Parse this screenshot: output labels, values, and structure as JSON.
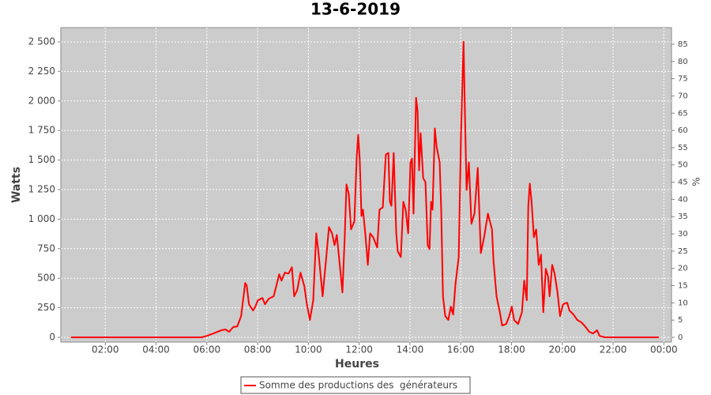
{
  "chart_data": {
    "type": "line",
    "title": "13-6-2019",
    "x_label": "Heures",
    "y_label": "Watts",
    "y2_label": "%",
    "x": [
      0.65,
      5.8,
      6.01,
      6.26,
      6.57,
      6.73,
      6.88,
      7.04,
      7.2,
      7.35,
      7.51,
      7.57,
      7.66,
      7.82,
      7.91,
      8.01,
      8.19,
      8.29,
      8.44,
      8.63,
      8.75,
      8.85,
      8.94,
      9.07,
      9.22,
      9.35,
      9.44,
      9.56,
      9.69,
      9.84,
      9.94,
      10.06,
      10.19,
      10.31,
      10.4,
      10.56,
      10.69,
      10.81,
      10.93,
      11.03,
      11.12,
      11.25,
      11.34,
      11.43,
      11.5,
      11.59,
      11.68,
      11.81,
      11.9,
      11.96,
      12.02,
      12.09,
      12.15,
      12.24,
      12.34,
      12.43,
      12.55,
      12.71,
      12.8,
      12.93,
      13.05,
      13.15,
      13.21,
      13.27,
      13.36,
      13.46,
      13.52,
      13.64,
      13.74,
      13.83,
      13.93,
      14.02,
      14.08,
      14.14,
      14.24,
      14.3,
      14.36,
      14.42,
      14.52,
      14.61,
      14.7,
      14.77,
      14.83,
      14.89,
      14.98,
      15.05,
      15.17,
      15.23,
      15.3,
      15.39,
      15.51,
      15.61,
      15.7,
      15.79,
      15.92,
      16.01,
      16.11,
      16.17,
      16.23,
      16.32,
      16.42,
      16.54,
      16.67,
      16.79,
      16.92,
      17.07,
      17.23,
      17.29,
      17.41,
      17.54,
      17.63,
      17.79,
      17.91,
      18.01,
      18.1,
      18.26,
      18.41,
      18.5,
      18.6,
      18.66,
      18.72,
      18.79,
      18.88,
      18.97,
      19.07,
      19.16,
      19.25,
      19.35,
      19.44,
      19.5,
      19.6,
      19.69,
      19.81,
      19.91,
      20.03,
      20.19,
      20.28,
      20.44,
      20.59,
      20.75,
      20.9,
      21.06,
      21.21,
      21.37,
      21.46,
      21.68,
      23.8
    ],
    "series": [
      {
        "name": "Somme des productions des  générateurs",
        "color": "#ff0000",
        "values": [
          0,
          0,
          13,
          33,
          60,
          67,
          47,
          87,
          93,
          180,
          460,
          440,
          280,
          227,
          260,
          313,
          333,
          280,
          327,
          347,
          447,
          533,
          480,
          547,
          540,
          593,
          347,
          400,
          547,
          433,
          280,
          147,
          313,
          880,
          713,
          347,
          647,
          933,
          880,
          780,
          867,
          580,
          380,
          847,
          1293,
          1213,
          913,
          980,
          1513,
          1713,
          1513,
          1027,
          1080,
          880,
          613,
          880,
          847,
          760,
          1080,
          1100,
          1547,
          1560,
          1147,
          1113,
          1560,
          880,
          727,
          680,
          1147,
          1080,
          880,
          1480,
          1513,
          1047,
          2027,
          1913,
          1413,
          1727,
          1347,
          1313,
          780,
          747,
          1147,
          1080,
          1767,
          1613,
          1480,
          1080,
          347,
          180,
          147,
          260,
          193,
          447,
          680,
          1713,
          2500,
          1847,
          1247,
          1480,
          960,
          1047,
          1433,
          713,
          847,
          1047,
          913,
          647,
          347,
          213,
          100,
          113,
          180,
          260,
          147,
          113,
          213,
          480,
          313,
          1113,
          1300,
          1147,
          847,
          913,
          613,
          700,
          213,
          580,
          513,
          347,
          613,
          547,
          380,
          180,
          280,
          293,
          227,
          193,
          147,
          127,
          93,
          47,
          33,
          60,
          13,
          0,
          0
        ]
      }
    ],
    "xlim": [
      0.25,
      24.3
    ],
    "xticks": [
      {
        "value": 2,
        "label": "02:00"
      },
      {
        "value": 4,
        "label": "04:00"
      },
      {
        "value": 6,
        "label": "06:00"
      },
      {
        "value": 8,
        "label": "08:00"
      },
      {
        "value": 10,
        "label": "10:00"
      },
      {
        "value": 12,
        "label": "12:00"
      },
      {
        "value": 14,
        "label": "14:00"
      },
      {
        "value": 16,
        "label": "16:00"
      },
      {
        "value": 18,
        "label": "18:00"
      },
      {
        "value": 20,
        "label": "20:00"
      },
      {
        "value": 22,
        "label": "22:00"
      },
      {
        "value": 24,
        "label": "00:00"
      }
    ],
    "ylim": [
      -40,
      2620
    ],
    "yticks": [
      0,
      250,
      500,
      750,
      {
        "value": 1000,
        "label": "1 000"
      },
      {
        "value": 1250,
        "label": "1 250"
      },
      {
        "value": 1500,
        "label": "1 500"
      },
      {
        "value": 1750,
        "label": "1 750"
      },
      {
        "value": 2000,
        "label": "2 000"
      },
      {
        "value": 2250,
        "label": "2 250"
      },
      {
        "value": 2500,
        "label": "2 500"
      }
    ],
    "y2lim": [
      -1.37,
      89.8
    ],
    "y2ticks": [
      0,
      5,
      10,
      15,
      20,
      25,
      30,
      35,
      40,
      45,
      50,
      55,
      60,
      65,
      70,
      75,
      80,
      85
    ],
    "grid": true,
    "legend": "bottom"
  }
}
